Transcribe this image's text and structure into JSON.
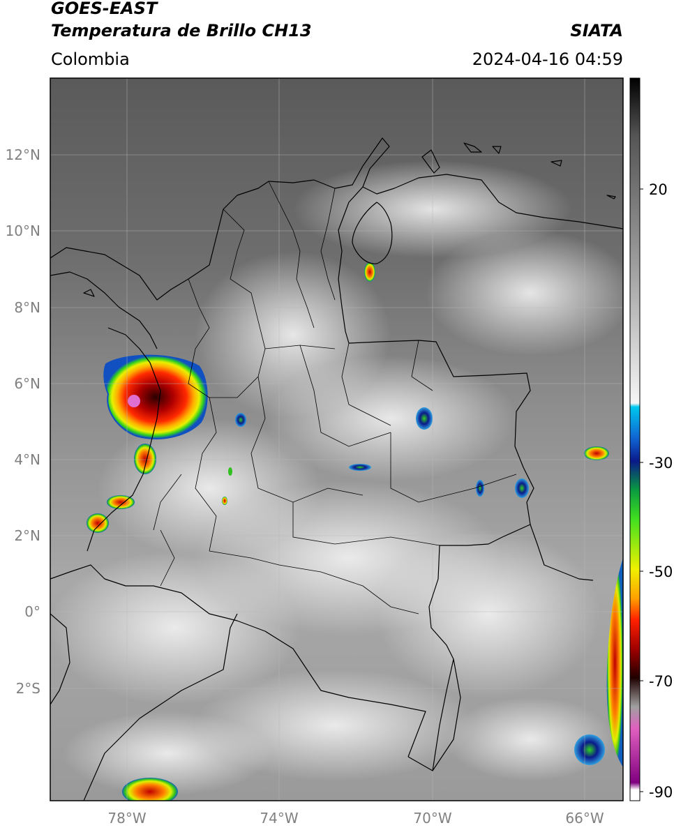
{
  "header": {
    "satellite": "GOES-EAST",
    "product": "Temperatura de Brillo CH13",
    "agency": "SIATA",
    "region": "Colombia",
    "datetime": "2024-04-16 04:59"
  },
  "map": {
    "lat_labels": [
      "12°N",
      "10°N",
      "8°N",
      "6°N",
      "4°N",
      "2°N",
      "0°",
      "2°S"
    ],
    "lon_labels": [
      "78°W",
      "74°W",
      "70°W",
      "66°W"
    ],
    "gridlines": true
  },
  "colorbar": {
    "tick_labels": [
      "20",
      "-30",
      "-50",
      "-70",
      "-90"
    ],
    "stops": [
      {
        "color": "#000000"
      },
      {
        "color": "#555555"
      },
      {
        "color": "#9a9a9a"
      },
      {
        "color": "#f5f5f5"
      },
      {
        "color": "#00c8f0"
      },
      {
        "color": "#1060d0"
      },
      {
        "color": "#0a1a8a"
      },
      {
        "color": "#0a9a40"
      },
      {
        "color": "#40e020"
      },
      {
        "color": "#f0f000"
      },
      {
        "color": "#ffa000"
      },
      {
        "color": "#ff2000"
      },
      {
        "color": "#a00000"
      },
      {
        "color": "#200000"
      },
      {
        "color": "#a0a0a0"
      },
      {
        "color": "#e060c0"
      },
      {
        "color": "#800080"
      },
      {
        "color": "#ffffff"
      }
    ]
  }
}
